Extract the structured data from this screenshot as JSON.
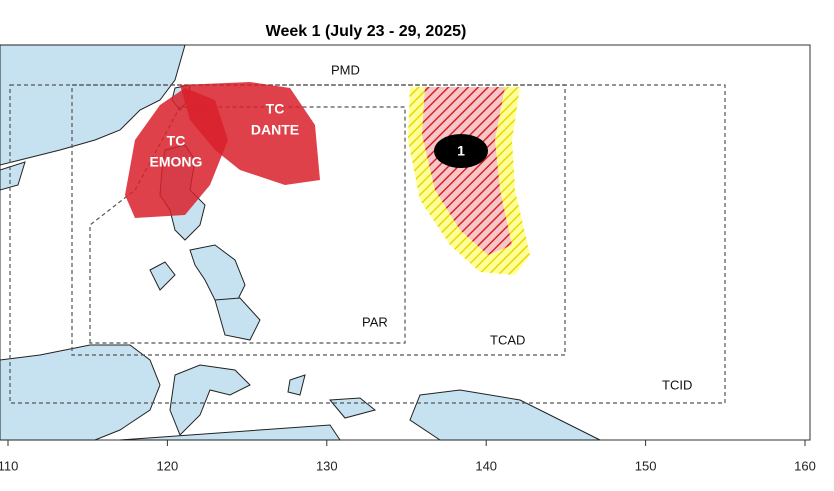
{
  "title": "Week 1 (July 23 - 29, 2025)",
  "axis": {
    "xlim": [
      110,
      160
    ],
    "xticks": [
      110,
      120,
      130,
      140,
      150,
      160
    ]
  },
  "labels": {
    "dante": [
      "TC",
      "DANTE"
    ],
    "emong": [
      "TC",
      "EMONG"
    ],
    "pmd": "PMD",
    "par": "PAR",
    "tcad": "TCAD",
    "tcid": "TCID",
    "cyclone": "1"
  }
}
